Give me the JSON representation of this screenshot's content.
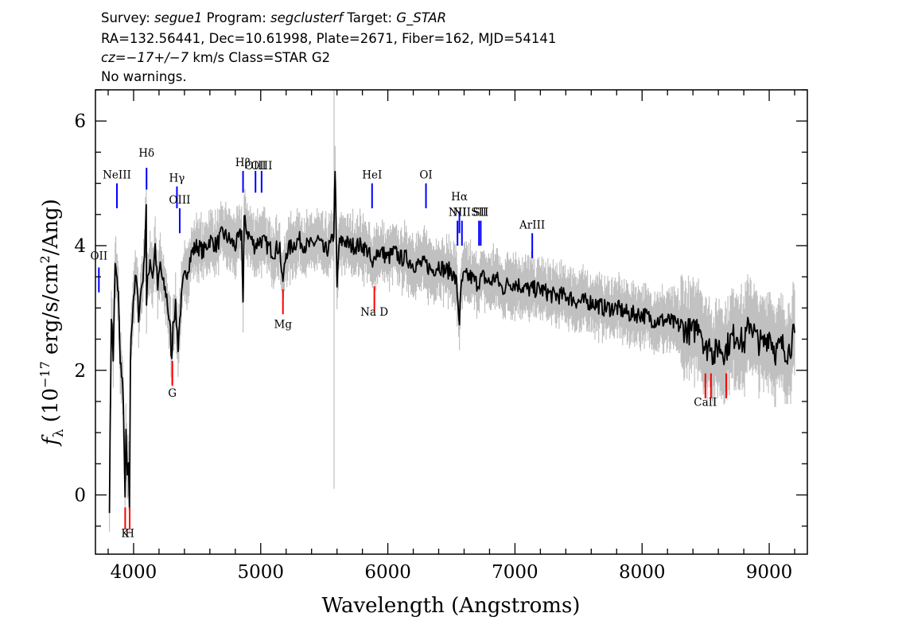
{
  "header": {
    "line1": {
      "survey_label": "Survey: ",
      "survey": "segue1",
      "program_label": " Program: ",
      "program": "segclusterf",
      "target_label": " Target: ",
      "target": "G_STAR"
    },
    "line2": "RA=132.56441, Dec=10.61998, Plate=2671, Fiber=162, MJD=54141",
    "line3": {
      "cz": "cz=−17+/−7",
      "rest": " km/s Class=STAR G2"
    },
    "line4": "No warnings."
  },
  "chart_data": {
    "type": "line",
    "xlabel": "Wavelength (Angstroms)",
    "ylabel": {
      "f": "f",
      "lambda": "λ",
      "open": " (10",
      "exp1": "−17",
      "mid": " erg/s/cm",
      "exp2": "2",
      "close": "/Ang)"
    },
    "xlim": [
      3700,
      9300
    ],
    "ylim": [
      -0.95,
      6.5
    ],
    "xticks": [
      4000,
      5000,
      6000,
      7000,
      8000,
      9000
    ],
    "yticks": [
      0,
      2,
      4,
      6
    ],
    "x_minor_step": 200,
    "y_minor_step": 0.5,
    "grid": false,
    "series": [
      {
        "role": "flux",
        "color": "#000000",
        "x": [
          3810,
          3825,
          3840,
          3855,
          3870,
          3880,
          3890,
          3905,
          3920,
          3933,
          3940,
          3950,
          3960,
          3968,
          3975,
          3985,
          4000,
          4020,
          4040,
          4060,
          4080,
          4100,
          4102,
          4110,
          4130,
          4150,
          4170,
          4190,
          4210,
          4230,
          4260,
          4290,
          4300,
          4310,
          4330,
          4350,
          4370,
          4390,
          4420,
          4460,
          4500,
          4550,
          4600,
          4650,
          4700,
          4750,
          4800,
          4850,
          4861,
          4870,
          4900,
          4950,
          5000,
          5050,
          5100,
          5150,
          5170,
          5180,
          5200,
          5250,
          5300,
          5350,
          5400,
          5450,
          5500,
          5550,
          5575,
          5585,
          5595,
          5600,
          5615,
          5650,
          5700,
          5750,
          5800,
          5850,
          5880,
          5893,
          5900,
          5950,
          6000,
          6050,
          6100,
          6150,
          6200,
          6250,
          6300,
          6350,
          6400,
          6450,
          6500,
          6540,
          6563,
          6580,
          6600,
          6650,
          6700,
          6750,
          6800,
          6850,
          6900,
          6950,
          7000,
          7100,
          7200,
          7300,
          7400,
          7500,
          7600,
          7700,
          7800,
          7900,
          8000,
          8100,
          8200,
          8300,
          8400,
          8450,
          8500,
          8540,
          8560,
          8600,
          8650,
          8700,
          8750,
          8800,
          8850,
          8900,
          8950,
          9000,
          9050,
          9100,
          9150,
          9200
        ],
        "values": [
          -0.15,
          2.9,
          2.2,
          3.7,
          3.4,
          3.3,
          2.4,
          1.9,
          1.5,
          -0.15,
          1.0,
          0.3,
          0.4,
          -0.2,
          2.2,
          2.7,
          3.2,
          3.5,
          2.9,
          3.3,
          3.6,
          4.7,
          3.0,
          3.4,
          3.8,
          3.5,
          4.0,
          3.3,
          3.7,
          3.4,
          3.2,
          2.6,
          2.1,
          2.8,
          3.0,
          2.4,
          3.0,
          3.4,
          3.6,
          3.9,
          4.0,
          3.9,
          4.1,
          4.0,
          4.2,
          4.1,
          4.0,
          4.2,
          3.1,
          4.4,
          4.2,
          4.0,
          4.1,
          4.0,
          3.9,
          4.0,
          3.4,
          3.5,
          3.9,
          4.0,
          4.1,
          4.0,
          4.0,
          4.1,
          3.9,
          4.0,
          4.2,
          5.3,
          3.9,
          3.3,
          4.0,
          4.1,
          4.0,
          4.0,
          4.0,
          3.9,
          3.6,
          3.8,
          3.9,
          3.9,
          3.8,
          3.9,
          3.8,
          3.8,
          3.7,
          3.7,
          3.7,
          3.6,
          3.7,
          3.6,
          3.6,
          3.4,
          2.8,
          3.4,
          3.5,
          3.5,
          3.4,
          3.5,
          3.4,
          3.5,
          3.3,
          3.4,
          3.4,
          3.3,
          3.3,
          3.2,
          3.2,
          3.1,
          3.1,
          3.0,
          3.0,
          2.9,
          2.9,
          2.8,
          2.8,
          2.7,
          2.6,
          2.8,
          2.3,
          2.5,
          2.2,
          2.4,
          2.3,
          2.5,
          2.6,
          2.4,
          2.8,
          2.5,
          2.4,
          2.6,
          2.3,
          2.4,
          2.3,
          2.6
        ]
      }
    ],
    "emission_lines": [
      {
        "label": "OII",
        "x": 3727,
        "y0": 3.25,
        "y1": 3.65,
        "label_y": 3.7
      },
      {
        "label": "NeIII",
        "x": 3869,
        "y0": 4.6,
        "y1": 5.0,
        "label_y": 5.0
      },
      {
        "label": "Hδ",
        "x": 4102,
        "y0": 4.9,
        "y1": 5.25,
        "label_y": 5.35
      },
      {
        "label": "Hγ",
        "x": 4341,
        "y0": 4.6,
        "y1": 4.95,
        "label_y": 4.95
      },
      {
        "label": "OIII",
        "x": 4363,
        "y0": 4.2,
        "y1": 4.6,
        "label_y": 4.6
      },
      {
        "label": "Hβ",
        "x": 4861,
        "y0": 4.85,
        "y1": 5.2,
        "label_y": 5.2
      },
      {
        "label": "OIII",
        "x": 4959,
        "y0": 4.85,
        "y1": 5.2,
        "label_y": 5.15
      },
      {
        "label": "OIII",
        "x": 5007,
        "y0": 4.85,
        "y1": 5.2,
        "label_y": 5.15
      },
      {
        "label": "HeI",
        "x": 5876,
        "y0": 4.6,
        "y1": 5.0,
        "label_y": 5.0
      },
      {
        "label": "OI",
        "x": 6300,
        "y0": 4.6,
        "y1": 5.0,
        "label_y": 5.0
      },
      {
        "label": "NII",
        "x": 6548,
        "y0": 4.0,
        "y1": 4.4,
        "label_y": 4.4
      },
      {
        "label": "Hα",
        "x": 6563,
        "y0": 4.2,
        "y1": 4.55,
        "label_y": 4.65
      },
      {
        "label": "NII",
        "x": 6583,
        "y0": 4.0,
        "y1": 4.4,
        "label_y": 4.4
      },
      {
        "label": "SII",
        "x": 6717,
        "y0": 4.0,
        "y1": 4.4,
        "label_y": 4.4
      },
      {
        "label": "SII",
        "x": 6731,
        "y0": 4.0,
        "y1": 4.4,
        "label_y": 4.4
      },
      {
        "label": "ArIII",
        "x": 7136,
        "y0": 3.8,
        "y1": 4.2,
        "label_y": 4.2
      }
    ],
    "absorption_lines": [
      {
        "label": "K",
        "x": 3934,
        "y0": -0.55,
        "y1": -0.2,
        "label_y": -0.75
      },
      {
        "label": "H",
        "x": 3969,
        "y0": -0.55,
        "y1": -0.2,
        "label_y": -0.75
      },
      {
        "label": "G",
        "x": 4305,
        "y0": 1.75,
        "y1": 2.15,
        "label_y": 1.5
      },
      {
        "label": "Mg",
        "x": 5175,
        "y0": 2.9,
        "y1": 3.3,
        "label_y": 2.6
      },
      {
        "label": "Na D",
        "x": 5894,
        "y0": 2.95,
        "y1": 3.35,
        "label_y": 2.8
      },
      {
        "label": "CaII",
        "x": 8498,
        "y0": 1.55,
        "y1": 1.95,
        "label_y": 1.35
      },
      {
        "label": "",
        "x": 8542,
        "y0": 1.55,
        "y1": 1.95,
        "label_y": 1.35
      },
      {
        "label": "",
        "x": 8662,
        "y0": 1.55,
        "y1": 1.95,
        "label_y": 1.35
      }
    ],
    "colors": {
      "flux": "#000000",
      "error": "#c0c0c0",
      "emission": "#0000ff",
      "absorption": "#ff0000",
      "axes": "#000000"
    }
  }
}
